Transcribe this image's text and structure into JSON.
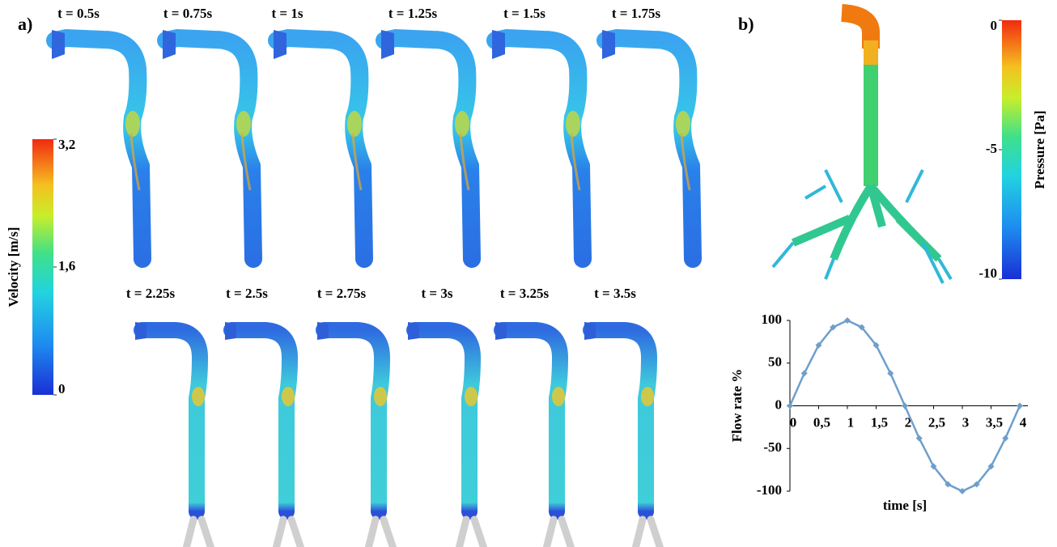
{
  "panel_a": {
    "label": "a)",
    "times_top": [
      "t = 0.5s",
      "t = 0.75s",
      "t = 1s",
      "t = 1.25s",
      "t = 1.5s",
      "t = 1.75s"
    ],
    "times_bottom": [
      "t = 2.25s",
      "t = 2.5s",
      "t = 2.75s",
      "t = 3s",
      "t = 3.25s",
      "t = 3.5s"
    ],
    "colorbar": {
      "title": "Velocity [m/s]",
      "lim": [
        0,
        3.2
      ],
      "ticks": [
        0,
        {
          "value": 1.6,
          "label": "1,6"
        },
        {
          "value": 3.2,
          "label": "3,2"
        }
      ]
    }
  },
  "panel_b": {
    "label": "b)",
    "colorbar": {
      "title": "Pressure [Pa]",
      "lim": [
        -10,
        0
      ],
      "ticks": [
        -10,
        -5,
        0
      ]
    }
  },
  "chart_data": {
    "type": "line",
    "x_label": "time [s]",
    "y_label": "Flow rate %",
    "x": [
      0,
      0.25,
      0.5,
      0.75,
      1,
      1.25,
      1.5,
      1.75,
      2,
      2.25,
      2.5,
      2.75,
      3,
      3.25,
      3.5,
      3.75,
      4
    ],
    "values": [
      0,
      38,
      71,
      92,
      100,
      92,
      71,
      38,
      0,
      -38,
      -71,
      -92,
      -100,
      -92,
      -71,
      -38,
      0
    ],
    "color": "#6e9fcb",
    "xlim": [
      0,
      4
    ],
    "ylim": [
      -100,
      100
    ],
    "xticks": [
      0,
      {
        "value": 0.5,
        "label": "0,5"
      },
      1,
      {
        "value": 1.5,
        "label": "1,5"
      },
      2,
      {
        "value": 2.5,
        "label": "2,5"
      },
      3,
      {
        "value": 3.5,
        "label": "3,5"
      },
      4
    ],
    "yticks": [
      -100,
      -50,
      0,
      50,
      100
    ]
  }
}
